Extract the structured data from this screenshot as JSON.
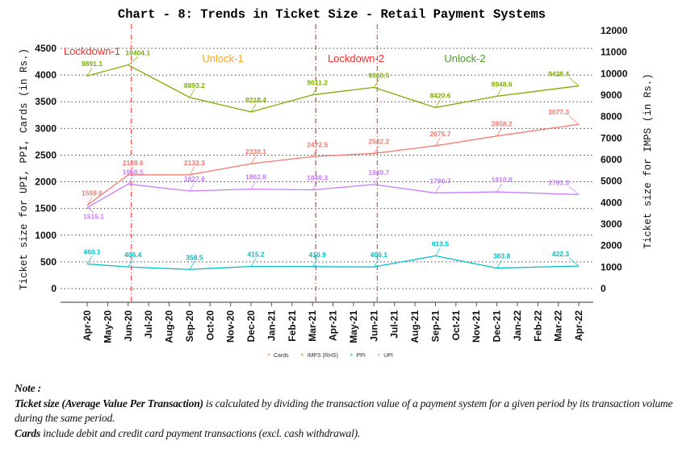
{
  "chart_data": {
    "type": "line",
    "title": "Chart - 8: Trends in Ticket Size - Retail Payment Systems",
    "ylabel_left": "Ticket size for UPI, PPI, Cards (in Rs.)",
    "ylabel_right": "Ticket size for IMPS (in Rs.)",
    "xlabel": "",
    "ylim_left": [
      0,
      4500
    ],
    "ylim_right": [
      0,
      12000
    ],
    "yticks_left": [
      0,
      500,
      1000,
      1500,
      2000,
      2500,
      3000,
      3500,
      4000,
      4500
    ],
    "yticks_right": [
      0,
      1000,
      2000,
      3000,
      4000,
      5000,
      6000,
      7000,
      8000,
      9000,
      10000,
      11000,
      12000
    ],
    "x_ticks": [
      "Apr-20",
      "May-20",
      "Jun-20",
      "Jul-20",
      "Aug-20",
      "Sep-20",
      "Oct-20",
      "Nov-20",
      "Dec-20",
      "Jan-21",
      "Feb-21",
      "Mar-21",
      "Apr-21",
      "May-21",
      "Jun-21",
      "Jul-21",
      "Aug-21",
      "Sep-21",
      "Oct-21",
      "Nov-21",
      "Dec-21",
      "Jan-22",
      "Feb-22",
      "Mar-22",
      "Apr-22"
    ],
    "x": [
      "Apr-20",
      "Jun-20",
      "Sep-20",
      "Dec-20",
      "Mar-21",
      "Jun-21",
      "Sep-21",
      "Dec-21",
      "Apr-22"
    ],
    "grid": true,
    "legend_position": "bottom",
    "series": [
      {
        "name": "Cards",
        "axis": "left",
        "color": "#f8766d",
        "values": [
          1559.6,
          2128.6,
          2132.3,
          2338.1,
          2472.5,
          2532.2,
          2675.7,
          2858.2,
          3077.3
        ]
      },
      {
        "name": "IMPS (RHS)",
        "axis": "right",
        "color": "#7cae00",
        "values": [
          9891.1,
          10404.1,
          8893.2,
          8218.4,
          9011.2,
          9360.5,
          8420.6,
          8948.6,
          9428.4
        ]
      },
      {
        "name": "PPI",
        "axis": "left",
        "color": "#00bfc4",
        "values": [
          460.1,
          406.4,
          358.5,
          415.2,
          410.9,
          406.1,
          613.5,
          383.8,
          422.3
        ]
      },
      {
        "name": "UPI",
        "axis": "left",
        "color": "#c77cff",
        "values": [
          1515.1,
          1958.5,
          1827.8,
          1862.8,
          1848.3,
          1949.7,
          1790.7,
          1810.8,
          1761.3
        ]
      }
    ],
    "vlines": [
      {
        "x": "Jun-20",
        "color": "#ff2020"
      },
      {
        "x": "Mar-21",
        "color": "#b22222"
      },
      {
        "x": "Jun-21",
        "color": "#ff2020"
      }
    ],
    "annotations": [
      {
        "text": "Lockdown-1",
        "color": "#ff2a2a"
      },
      {
        "text": "Unlock-1",
        "color": "#f5a623"
      },
      {
        "text": "Lockdown-2",
        "color": "#ff2a2a"
      },
      {
        "text": "Unlock-2",
        "color": "#4c9a2a"
      }
    ]
  },
  "notes": {
    "heading": "Note :",
    "line1_bold": "Ticket size (Average Value Per Transaction)",
    "line1_rest": " is calculated by dividing the transaction value of a payment system for a given period by its transaction volume during the same period.",
    "line2_bold": "Cards",
    "line2_rest": " include debit and credit card payment transactions (excl. cash withdrawal)."
  }
}
